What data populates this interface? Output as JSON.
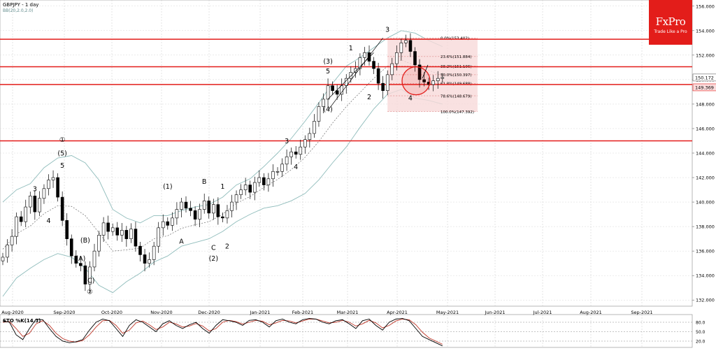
{
  "header": {
    "symbol": "GBPJPY - 1 day",
    "indicator": "BB(20,2.0,2.0)"
  },
  "oscillator": {
    "label": "STO %K(14,3)",
    "levels": [
      "80.0",
      "50.0",
      "20.0"
    ]
  },
  "logo": {
    "brand": "FxPro",
    "tagline": "Trade Like a Pro"
  },
  "colors": {
    "level_line": "#e31d1a",
    "bollinger": "#8fbcbb",
    "candle": "#000000",
    "logo_bg": "#e31d1a",
    "sto_k": "#000000",
    "sto_d": "#c0392b"
  },
  "chart_data": {
    "type": "candlestick",
    "title": "GBPJPY - 1 day",
    "x_ticks": [
      "Aug-2020",
      "Sep-2020",
      "Oct-2020",
      "Nov-2020",
      "Dec-2020",
      "Jan-2021",
      "Feb-2021",
      "Mar-2021",
      "Apr-2021",
      "May-2021",
      "Jun-2021",
      "Jul-2021",
      "Aug-2021",
      "Sep-2021"
    ],
    "y_ticks": [
      132,
      134,
      136,
      138,
      140,
      142,
      144,
      146,
      148,
      150,
      152,
      154,
      156
    ],
    "ylim": [
      131.5,
      156.5
    ],
    "price_labels": {
      "last": "150.172",
      "marked": "149.369"
    },
    "horizontal_levels": [
      153.3,
      151.05,
      149.6,
      145.0
    ],
    "close_path": [
      135.5,
      136.5,
      137.2,
      138.8,
      138.4,
      139.6,
      140.5,
      139.2,
      140.3,
      141.1,
      141.8,
      142.0,
      140.4,
      138.5,
      137.0,
      135.6,
      135.0,
      134.8,
      133.3,
      134.7,
      136.0,
      137.3,
      138.3,
      137.6,
      137.9,
      137.3,
      137.7,
      137.0,
      137.8,
      136.4,
      135.7,
      135.0,
      135.3,
      136.4,
      137.9,
      138.4,
      138.1,
      138.7,
      139.4,
      140.0,
      139.5,
      139.3,
      138.6,
      139.4,
      140.1,
      139.1,
      139.8,
      138.8,
      138.7,
      139.3,
      140.0,
      140.6,
      141.0,
      141.4,
      140.8,
      141.6,
      142.0,
      141.4,
      141.9,
      142.5,
      142.5,
      143.1,
      143.7,
      144.1,
      143.9,
      144.5,
      145.1,
      145.6,
      146.6,
      147.8,
      148.4,
      149.5,
      149.1,
      148.8,
      149.5,
      150.1,
      150.6,
      150.9,
      151.8,
      152.2,
      151.5,
      150.9,
      149.7,
      149.1,
      150.4,
      151.3,
      152.2,
      153.0,
      153.2,
      152.3,
      151.2,
      150.0,
      149.8,
      149.6,
      149.9,
      150.1,
      150.17
    ],
    "bollinger_upper": [
      140.0,
      141.0,
      141.5,
      142.8,
      143.6,
      143.8,
      143.2,
      141.8,
      139.4,
      138.7,
      138.3,
      138.9,
      138.9,
      139.3,
      139.6,
      139.8,
      140.4,
      141.4,
      141.9,
      142.9,
      144.0,
      145.2,
      146.6,
      148.1,
      149.7,
      151.1,
      151.8,
      152.6,
      153.4,
      154.0,
      153.8,
      153.2,
      152.7
    ],
    "bollinger_lower": [
      132.3,
      133.8,
      134.6,
      135.3,
      135.8,
      135.5,
      134.6,
      133.2,
      132.6,
      133.5,
      134.2,
      135.1,
      135.6,
      136.4,
      136.7,
      137.0,
      137.6,
      138.4,
      139.0,
      139.5,
      139.7,
      140.1,
      140.7,
      141.8,
      143.2,
      144.5,
      146.1,
      147.6,
      148.8,
      149.2,
      148.5,
      148.3,
      148.0
    ],
    "fib_levels": [
      {
        "label": "0.0%(153.402)",
        "value": 153.402
      },
      {
        "label": "23.6%(151.884)",
        "value": 151.884
      },
      {
        "label": "38.2%(151.106)",
        "value": 151.106
      },
      {
        "label": "50.0%(150.397)",
        "value": 150.397
      },
      {
        "label": "61.8%(149.688)",
        "value": 149.688
      },
      {
        "label": "78.6%(148.679)",
        "value": 148.679
      },
      {
        "label": "100.0%(147.392)",
        "value": 147.392
      }
    ],
    "wave_labels": [
      {
        "text": "3",
        "bar": 7,
        "price": 140.9
      },
      {
        "text": "4",
        "bar": 10,
        "price": 138.3
      },
      {
        "text": "①",
        "bar": 13,
        "price": 144.9
      },
      {
        "text": "(5)",
        "bar": 13,
        "price": 143.8
      },
      {
        "text": "5",
        "bar": 13,
        "price": 142.8
      },
      {
        "text": "(B)",
        "bar": 18,
        "price": 136.7
      },
      {
        "text": "(A)",
        "bar": 17,
        "price": 135.2
      },
      {
        "text": "(C)",
        "bar": 19,
        "price": 133.4
      },
      {
        "text": "②",
        "bar": 19,
        "price": 132.5
      },
      {
        "text": "(1)",
        "bar": 36,
        "price": 141.1
      },
      {
        "text": "A",
        "bar": 39,
        "price": 136.6
      },
      {
        "text": "B",
        "bar": 44,
        "price": 141.5
      },
      {
        "text": "1",
        "bar": 48,
        "price": 141.1
      },
      {
        "text": "C",
        "bar": 46,
        "price": 136.1
      },
      {
        "text": "(2)",
        "bar": 46,
        "price": 135.2
      },
      {
        "text": "2",
        "bar": 49,
        "price": 136.2
      },
      {
        "text": "3",
        "bar": 62,
        "price": 144.8
      },
      {
        "text": "4",
        "bar": 64,
        "price": 142.7
      },
      {
        "text": "(3)",
        "bar": 71,
        "price": 151.3
      },
      {
        "text": "5",
        "bar": 71,
        "price": 150.5
      },
      {
        "text": "(4)",
        "bar": 71,
        "price": 147.4
      },
      {
        "text": "1",
        "bar": 76,
        "price": 152.4
      },
      {
        "text": "2",
        "bar": 80,
        "price": 148.4
      },
      {
        "text": "3",
        "bar": 84,
        "price": 153.9
      },
      {
        "text": "4",
        "bar": 89,
        "price": 148.3
      }
    ],
    "stochastic_k": [
      85,
      80,
      40,
      25,
      60,
      90,
      88,
      60,
      35,
      20,
      15,
      18,
      25,
      55,
      80,
      90,
      85,
      60,
      35,
      70,
      88,
      80,
      65,
      50,
      75,
      85,
      70,
      60,
      72,
      80,
      60,
      45,
      70,
      88,
      85,
      80,
      70,
      86,
      88,
      80,
      65,
      85,
      90,
      80,
      75,
      88,
      92,
      90,
      80,
      75,
      85,
      88,
      75,
      60,
      85,
      90,
      70,
      55,
      80,
      90,
      92,
      85,
      60,
      35,
      25,
      15,
      5
    ],
    "stochastic_d": [
      80,
      82,
      60,
      35,
      45,
      75,
      85,
      70,
      45,
      28,
      20,
      17,
      22,
      40,
      65,
      85,
      86,
      70,
      45,
      55,
      78,
      84,
      72,
      57,
      65,
      80,
      75,
      65,
      68,
      76,
      68,
      52,
      60,
      80,
      86,
      82,
      74,
      80,
      86,
      83,
      72,
      78,
      86,
      84,
      78,
      84,
      90,
      90,
      84,
      78,
      80,
      86,
      80,
      68,
      75,
      86,
      78,
      62,
      70,
      84,
      90,
      88,
      72,
      48,
      30,
      20,
      10
    ],
    "sto_ylim": [
      0,
      100
    ]
  }
}
